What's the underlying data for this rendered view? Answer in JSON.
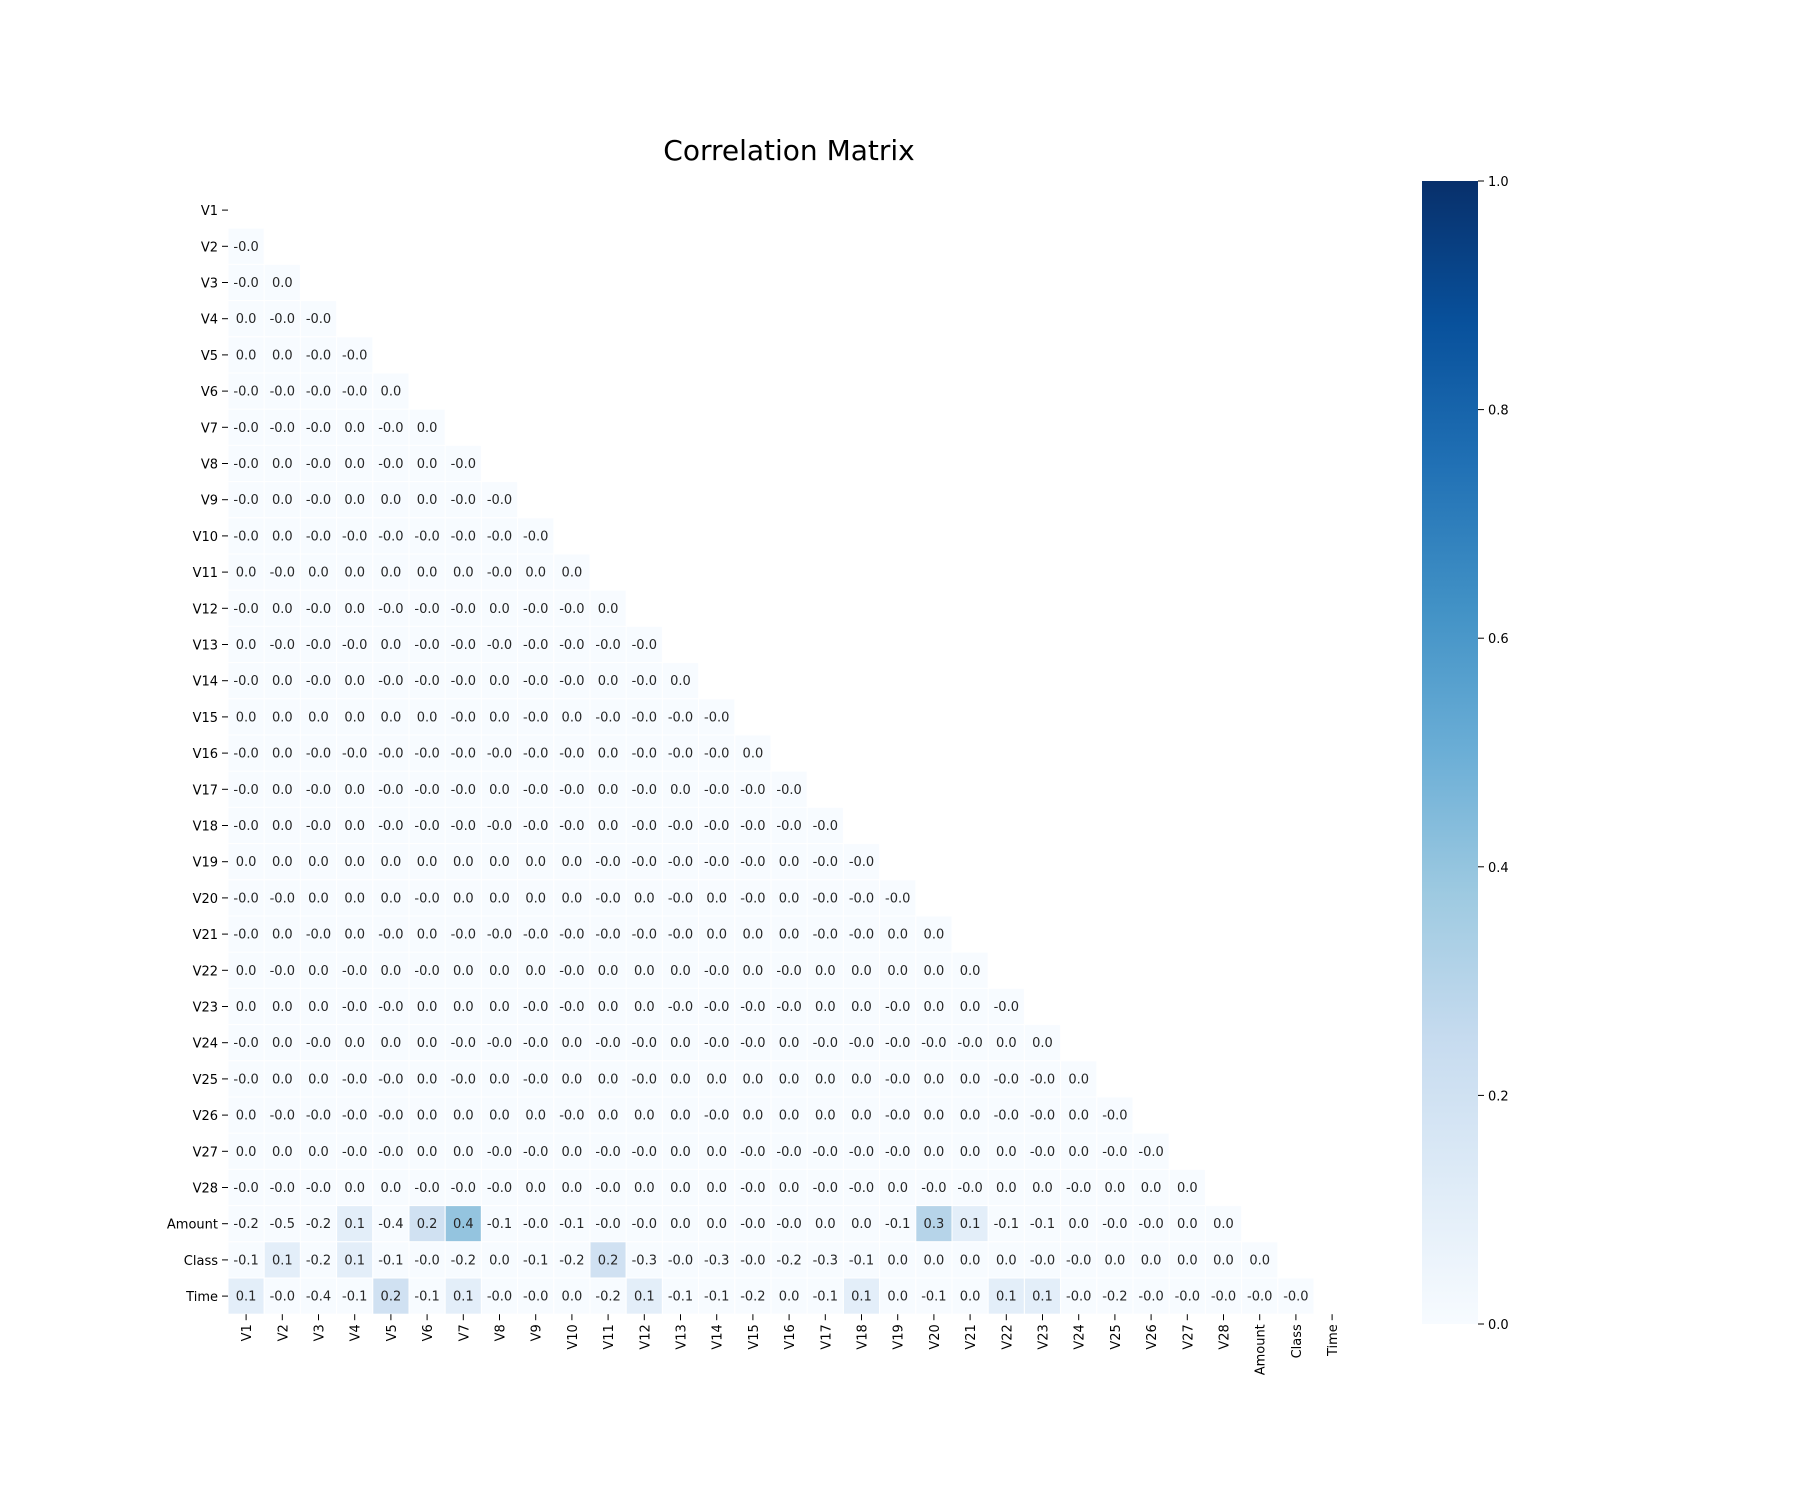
{
  "chart_data": {
    "type": "heatmap",
    "title": "Correlation Matrix",
    "mask": "upper-triangle-including-diagonal",
    "labels": [
      "V1",
      "V2",
      "V3",
      "V4",
      "V5",
      "V6",
      "V7",
      "V8",
      "V9",
      "V10",
      "V11",
      "V12",
      "V13",
      "V14",
      "V15",
      "V16",
      "V17",
      "V18",
      "V19",
      "V20",
      "V21",
      "V22",
      "V23",
      "V24",
      "V25",
      "V26",
      "V27",
      "V28",
      "Amount",
      "Class",
      "Time"
    ],
    "values": [
      [],
      [
        "-0.0"
      ],
      [
        "-0.0",
        "0.0"
      ],
      [
        "0.0",
        "-0.0",
        "-0.0"
      ],
      [
        "0.0",
        "0.0",
        "-0.0",
        "-0.0"
      ],
      [
        "-0.0",
        "-0.0",
        "-0.0",
        "-0.0",
        "0.0"
      ],
      [
        "-0.0",
        "-0.0",
        "-0.0",
        "0.0",
        "-0.0",
        "0.0"
      ],
      [
        "-0.0",
        "0.0",
        "-0.0",
        "0.0",
        "-0.0",
        "0.0",
        "-0.0"
      ],
      [
        "-0.0",
        "0.0",
        "-0.0",
        "0.0",
        "0.0",
        "0.0",
        "-0.0",
        "-0.0"
      ],
      [
        "-0.0",
        "0.0",
        "-0.0",
        "-0.0",
        "-0.0",
        "-0.0",
        "-0.0",
        "-0.0",
        "-0.0"
      ],
      [
        "0.0",
        "-0.0",
        "0.0",
        "0.0",
        "0.0",
        "0.0",
        "0.0",
        "-0.0",
        "0.0",
        "0.0"
      ],
      [
        "-0.0",
        "0.0",
        "-0.0",
        "0.0",
        "-0.0",
        "-0.0",
        "-0.0",
        "0.0",
        "-0.0",
        "-0.0",
        "0.0"
      ],
      [
        "0.0",
        "-0.0",
        "-0.0",
        "-0.0",
        "0.0",
        "-0.0",
        "-0.0",
        "-0.0",
        "-0.0",
        "-0.0",
        "-0.0",
        "-0.0"
      ],
      [
        "-0.0",
        "0.0",
        "-0.0",
        "0.0",
        "-0.0",
        "-0.0",
        "-0.0",
        "0.0",
        "-0.0",
        "-0.0",
        "0.0",
        "-0.0",
        "0.0"
      ],
      [
        "0.0",
        "0.0",
        "0.0",
        "0.0",
        "0.0",
        "0.0",
        "-0.0",
        "0.0",
        "-0.0",
        "0.0",
        "-0.0",
        "-0.0",
        "-0.0",
        "-0.0"
      ],
      [
        "-0.0",
        "0.0",
        "-0.0",
        "-0.0",
        "-0.0",
        "-0.0",
        "-0.0",
        "-0.0",
        "-0.0",
        "-0.0",
        "0.0",
        "-0.0",
        "-0.0",
        "-0.0",
        "0.0"
      ],
      [
        "-0.0",
        "0.0",
        "-0.0",
        "0.0",
        "-0.0",
        "-0.0",
        "-0.0",
        "0.0",
        "-0.0",
        "-0.0",
        "0.0",
        "-0.0",
        "0.0",
        "-0.0",
        "-0.0",
        "-0.0"
      ],
      [
        "-0.0",
        "0.0",
        "-0.0",
        "0.0",
        "-0.0",
        "-0.0",
        "-0.0",
        "-0.0",
        "-0.0",
        "-0.0",
        "0.0",
        "-0.0",
        "-0.0",
        "-0.0",
        "-0.0",
        "-0.0",
        "-0.0"
      ],
      [
        "0.0",
        "0.0",
        "0.0",
        "0.0",
        "0.0",
        "0.0",
        "0.0",
        "0.0",
        "0.0",
        "0.0",
        "-0.0",
        "-0.0",
        "-0.0",
        "-0.0",
        "-0.0",
        "0.0",
        "-0.0",
        "-0.0"
      ],
      [
        "-0.0",
        "-0.0",
        "0.0",
        "0.0",
        "0.0",
        "-0.0",
        "0.0",
        "0.0",
        "0.0",
        "0.0",
        "-0.0",
        "0.0",
        "-0.0",
        "0.0",
        "-0.0",
        "0.0",
        "-0.0",
        "-0.0",
        "-0.0"
      ],
      [
        "-0.0",
        "0.0",
        "-0.0",
        "0.0",
        "-0.0",
        "0.0",
        "-0.0",
        "-0.0",
        "-0.0",
        "-0.0",
        "-0.0",
        "-0.0",
        "-0.0",
        "0.0",
        "0.0",
        "0.0",
        "-0.0",
        "-0.0",
        "0.0",
        "0.0"
      ],
      [
        "0.0",
        "-0.0",
        "0.0",
        "-0.0",
        "0.0",
        "-0.0",
        "0.0",
        "0.0",
        "0.0",
        "-0.0",
        "0.0",
        "0.0",
        "0.0",
        "-0.0",
        "0.0",
        "-0.0",
        "0.0",
        "0.0",
        "0.0",
        "0.0",
        "0.0"
      ],
      [
        "0.0",
        "0.0",
        "0.0",
        "-0.0",
        "-0.0",
        "0.0",
        "0.0",
        "0.0",
        "-0.0",
        "-0.0",
        "0.0",
        "0.0",
        "-0.0",
        "-0.0",
        "-0.0",
        "-0.0",
        "0.0",
        "0.0",
        "-0.0",
        "0.0",
        "0.0",
        "-0.0"
      ],
      [
        "-0.0",
        "0.0",
        "-0.0",
        "0.0",
        "0.0",
        "0.0",
        "-0.0",
        "-0.0",
        "-0.0",
        "0.0",
        "-0.0",
        "-0.0",
        "0.0",
        "-0.0",
        "-0.0",
        "0.0",
        "-0.0",
        "-0.0",
        "-0.0",
        "-0.0",
        "-0.0",
        "0.0",
        "0.0"
      ],
      [
        "-0.0",
        "0.0",
        "0.0",
        "-0.0",
        "-0.0",
        "0.0",
        "-0.0",
        "0.0",
        "-0.0",
        "0.0",
        "0.0",
        "-0.0",
        "0.0",
        "0.0",
        "0.0",
        "0.0",
        "0.0",
        "0.0",
        "-0.0",
        "0.0",
        "0.0",
        "-0.0",
        "-0.0",
        "0.0"
      ],
      [
        "0.0",
        "-0.0",
        "-0.0",
        "-0.0",
        "-0.0",
        "0.0",
        "0.0",
        "0.0",
        "0.0",
        "-0.0",
        "0.0",
        "0.0",
        "0.0",
        "-0.0",
        "0.0",
        "0.0",
        "0.0",
        "0.0",
        "-0.0",
        "0.0",
        "0.0",
        "-0.0",
        "-0.0",
        "0.0",
        "-0.0"
      ],
      [
        "0.0",
        "0.0",
        "0.0",
        "-0.0",
        "-0.0",
        "0.0",
        "0.0",
        "-0.0",
        "-0.0",
        "0.0",
        "-0.0",
        "-0.0",
        "0.0",
        "0.0",
        "-0.0",
        "-0.0",
        "-0.0",
        "-0.0",
        "-0.0",
        "0.0",
        "0.0",
        "0.0",
        "-0.0",
        "0.0",
        "-0.0",
        "-0.0"
      ],
      [
        "-0.0",
        "-0.0",
        "-0.0",
        "0.0",
        "0.0",
        "-0.0",
        "-0.0",
        "-0.0",
        "0.0",
        "0.0",
        "-0.0",
        "0.0",
        "0.0",
        "0.0",
        "-0.0",
        "0.0",
        "-0.0",
        "-0.0",
        "0.0",
        "-0.0",
        "-0.0",
        "0.0",
        "0.0",
        "-0.0",
        "0.0",
        "0.0",
        "0.0"
      ],
      [
        "-0.2",
        "-0.5",
        "-0.2",
        "0.1",
        "-0.4",
        "0.2",
        "0.4",
        "-0.1",
        "-0.0",
        "-0.1",
        "-0.0",
        "-0.0",
        "0.0",
        "0.0",
        "-0.0",
        "-0.0",
        "0.0",
        "0.0",
        "-0.1",
        "0.3",
        "0.1",
        "-0.1",
        "-0.1",
        "0.0",
        "-0.0",
        "-0.0",
        "0.0",
        "0.0"
      ],
      [
        "-0.1",
        "0.1",
        "-0.2",
        "0.1",
        "-0.1",
        "-0.0",
        "-0.2",
        "0.0",
        "-0.1",
        "-0.2",
        "0.2",
        "-0.3",
        "-0.0",
        "-0.3",
        "-0.0",
        "-0.2",
        "-0.3",
        "-0.1",
        "0.0",
        "0.0",
        "0.0",
        "0.0",
        "-0.0",
        "-0.0",
        "0.0",
        "0.0",
        "0.0",
        "0.0",
        "0.0"
      ],
      [
        "0.1",
        "-0.0",
        "-0.4",
        "-0.1",
        "0.2",
        "-0.1",
        "0.1",
        "-0.0",
        "-0.0",
        "0.0",
        "-0.2",
        "0.1",
        "-0.1",
        "-0.1",
        "-0.2",
        "0.0",
        "-0.1",
        "0.1",
        "0.0",
        "-0.1",
        "0.0",
        "0.1",
        "0.1",
        "-0.0",
        "-0.2",
        "-0.0",
        "-0.0",
        "-0.0",
        "-0.0",
        "-0.0"
      ]
    ],
    "colorbar": {
      "vmin": 0.0,
      "vmax": 1.0,
      "ticks": [
        "0.0",
        "0.2",
        "0.4",
        "0.6",
        "0.8",
        "1.0"
      ],
      "colormap": "Blues",
      "color_low": "#f7fbff",
      "color_high": "#08306b"
    }
  }
}
